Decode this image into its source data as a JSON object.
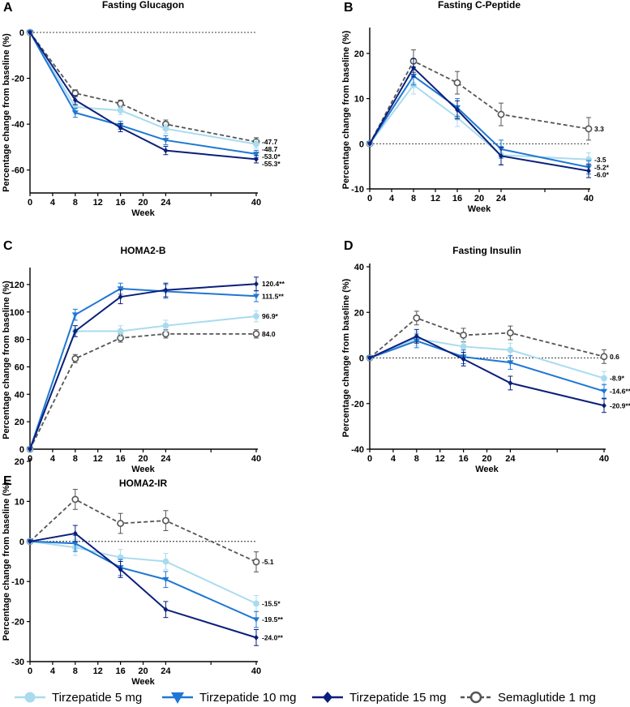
{
  "colors": {
    "t5": "#a9dbef",
    "t10": "#1f77d4",
    "t15": "#0b1f7a",
    "sema": "#555555",
    "axis": "#000000"
  },
  "legend": [
    {
      "key": "t5",
      "label": "Tirzepatide 5 mg",
      "marker": "circle-filled"
    },
    {
      "key": "t10",
      "label": "Tirzepatide 10 mg",
      "marker": "triangle-down"
    },
    {
      "key": "t15",
      "label": "Tirzepatide 15 mg",
      "marker": "diamond"
    },
    {
      "key": "sema",
      "label": "Semaglutide 1 mg",
      "marker": "circle-open"
    }
  ],
  "chart_data": [
    {
      "id": "A",
      "letter": "A",
      "type": "line",
      "title": "Fasting Glucagon",
      "xlabel": "Week",
      "ylabel": "Percentage change  from baseline (%)",
      "x": [
        0,
        8,
        16,
        24,
        40
      ],
      "xticks": [
        "0",
        "4",
        "8",
        "12",
        "16",
        "20",
        "24",
        "",
        "40"
      ],
      "xtick_values": [
        0,
        4,
        8,
        12,
        16,
        20,
        24,
        32,
        40
      ],
      "ylim": [
        -70,
        0
      ],
      "yticks": [
        0,
        -20,
        -40,
        -60
      ],
      "ytick_labels": [
        "0",
        "-20",
        "-40",
        "-60"
      ],
      "series": [
        {
          "key": "sema",
          "values": [
            0,
            -26.5,
            -31,
            -40,
            -47.7
          ],
          "err": [
            0,
            1.5,
            1.5,
            1.8,
            1.8
          ],
          "end_label": "-47.7"
        },
        {
          "key": "t5",
          "values": [
            0,
            -32.5,
            -34,
            -42,
            -48.7
          ],
          "err": [
            0,
            2.0,
            1.8,
            2.0,
            1.8
          ],
          "end_label": "-48.7"
        },
        {
          "key": "t10",
          "values": [
            0,
            -35,
            -40.5,
            -47,
            -53.0
          ],
          "err": [
            0,
            2.0,
            1.8,
            2.0,
            1.6
          ],
          "end_label": "-53.0*"
        },
        {
          "key": "t15",
          "values": [
            0,
            -29.5,
            -41.5,
            -51.5,
            -55.3
          ],
          "err": [
            0,
            2.0,
            1.8,
            1.8,
            1.6
          ],
          "end_label": "-55.3*"
        }
      ]
    },
    {
      "id": "B",
      "letter": "B",
      "type": "line",
      "title": "Fasting C-Peptide",
      "xlabel": "Week",
      "ylabel": "Percentage change from baseline (%)",
      "x": [
        0,
        8,
        16,
        24,
        40
      ],
      "xticks": [
        "0",
        "4",
        "8",
        "12",
        "16",
        "20",
        "24",
        "",
        "40"
      ],
      "xtick_values": [
        0,
        4,
        8,
        12,
        16,
        20,
        24,
        32,
        40
      ],
      "ylim": [
        -10,
        25
      ],
      "yticks": [
        20,
        10,
        0,
        -10
      ],
      "ytick_labels": [
        "20",
        "10",
        "0",
        "-10"
      ],
      "series": [
        {
          "key": "sema",
          "values": [
            0,
            18.3,
            13.5,
            6.5,
            3.3
          ],
          "err": [
            0,
            2.5,
            2.5,
            2.5,
            2.5
          ],
          "end_label": "3.3"
        },
        {
          "key": "t5",
          "values": [
            0,
            13.0,
            5.8,
            -2.5,
            -3.5
          ],
          "err": [
            0,
            2.0,
            2.0,
            2.0,
            1.5
          ],
          "end_label": "-3.5"
        },
        {
          "key": "t10",
          "values": [
            0,
            15.0,
            8.0,
            -1.2,
            -5.2
          ],
          "err": [
            0,
            2.0,
            2.0,
            2.0,
            1.5
          ],
          "end_label": "-5.2*"
        },
        {
          "key": "t15",
          "values": [
            0,
            16.8,
            7.5,
            -2.7,
            -6.0
          ],
          "err": [
            0,
            2.0,
            2.0,
            2.0,
            1.5
          ],
          "end_label": "-6.0*"
        }
      ]
    },
    {
      "id": "C",
      "letter": "C",
      "type": "line",
      "title": "HOMA2-B",
      "xlabel": "Week",
      "ylabel": "Percentage change  from baseline (%)",
      "x": [
        0,
        8,
        16,
        24,
        40
      ],
      "xticks": [
        "0",
        "4",
        "8",
        "12",
        "16",
        "20",
        "24",
        "",
        "40"
      ],
      "xtick_values": [
        0,
        4,
        8,
        12,
        16,
        20,
        24,
        32,
        40
      ],
      "ylim": [
        0,
        130
      ],
      "yticks": [
        120,
        100,
        80,
        60,
        40,
        20,
        0
      ],
      "ytick_labels": [
        "120",
        "100",
        "80",
        "60",
        "40",
        "20",
        "0"
      ],
      "series": [
        {
          "key": "sema",
          "values": [
            0,
            66,
            81,
            84,
            84.0
          ],
          "err": [
            0,
            3,
            3,
            3,
            3
          ],
          "end_label": "84.0"
        },
        {
          "key": "t5",
          "values": [
            0,
            86,
            86,
            90,
            96.9
          ],
          "err": [
            0,
            4,
            4,
            4,
            4
          ],
          "end_label": "96.9*"
        },
        {
          "key": "t10",
          "values": [
            0,
            98,
            117,
            115,
            111.5
          ],
          "err": [
            0,
            4,
            4,
            5,
            4
          ],
          "end_label": "111.5**"
        },
        {
          "key": "t15",
          "values": [
            0,
            86,
            111,
            116,
            120.4
          ],
          "err": [
            0,
            4,
            5,
            5,
            5
          ],
          "end_label": "120.4**"
        }
      ]
    },
    {
      "id": "D",
      "letter": "D",
      "type": "line",
      "title": "Fasting Insulin",
      "xlabel": "Week",
      "ylabel": "Percentage change from baseline (%)",
      "x": [
        0,
        8,
        16,
        24,
        40
      ],
      "xticks": [
        "0",
        "4",
        "8",
        "12",
        "16",
        "20",
        "24",
        "",
        "40"
      ],
      "xtick_values": [
        0,
        4,
        8,
        12,
        16,
        20,
        24,
        32,
        40
      ],
      "ylim": [
        -40,
        40
      ],
      "yticks": [
        40,
        20,
        0,
        -20,
        -40
      ],
      "ytick_labels": [
        "40",
        "20",
        "0",
        "-20",
        "-40"
      ],
      "series": [
        {
          "key": "sema",
          "values": [
            0,
            17.5,
            10,
            11,
            0.6
          ],
          "err": [
            0,
            3,
            3,
            3,
            3
          ],
          "end_label": "0.6"
        },
        {
          "key": "t5",
          "values": [
            0,
            8.5,
            5,
            3.5,
            -8.9
          ],
          "err": [
            0,
            3,
            3,
            3,
            3
          ],
          "end_label": "-8.9*"
        },
        {
          "key": "t10",
          "values": [
            0,
            7.5,
            0.5,
            -2,
            -14.6
          ],
          "err": [
            0,
            3,
            3,
            3,
            3
          ],
          "end_label": "-14.6**"
        },
        {
          "key": "t15",
          "values": [
            0,
            9.5,
            -0.5,
            -11,
            -20.9
          ],
          "err": [
            0,
            3,
            3,
            3,
            3
          ],
          "end_label": "-20.9**"
        }
      ]
    },
    {
      "id": "E",
      "letter": "E",
      "type": "line",
      "title": "HOMA2-IR",
      "xlabel": "Week",
      "ylabel": "Percentage change from baseline (%)",
      "x": [
        0,
        8,
        16,
        24,
        40
      ],
      "xticks": [
        "0",
        "4",
        "8",
        "12",
        "16",
        "20",
        "24",
        "",
        "40"
      ],
      "xtick_values": [
        0,
        4,
        8,
        12,
        16,
        20,
        24,
        32,
        40
      ],
      "ylim": [
        -30,
        20
      ],
      "yticks": [
        20,
        10,
        0,
        -10,
        -20,
        -30
      ],
      "ytick_labels": [
        "20",
        "10",
        "0",
        "-10",
        "-20",
        "-30"
      ],
      "series": [
        {
          "key": "sema",
          "values": [
            0,
            10.5,
            4.5,
            5.2,
            -5.1
          ],
          "err": [
            0,
            2.5,
            2.5,
            2.5,
            2.5
          ],
          "end_label": "-5.1"
        },
        {
          "key": "t5",
          "values": [
            0,
            -1.5,
            -4,
            -5,
            -15.5
          ],
          "err": [
            0,
            2,
            2,
            2,
            2
          ],
          "end_label": "-15.5*"
        },
        {
          "key": "t10",
          "values": [
            0,
            -0.5,
            -6.5,
            -9.5,
            -19.5
          ],
          "err": [
            0,
            2,
            2,
            2,
            2
          ],
          "end_label": "-19.5**"
        },
        {
          "key": "t15",
          "values": [
            0,
            2,
            -7,
            -17,
            -24.0
          ],
          "err": [
            0,
            2,
            2,
            2,
            2
          ],
          "end_label": "-24.0**"
        }
      ]
    }
  ]
}
